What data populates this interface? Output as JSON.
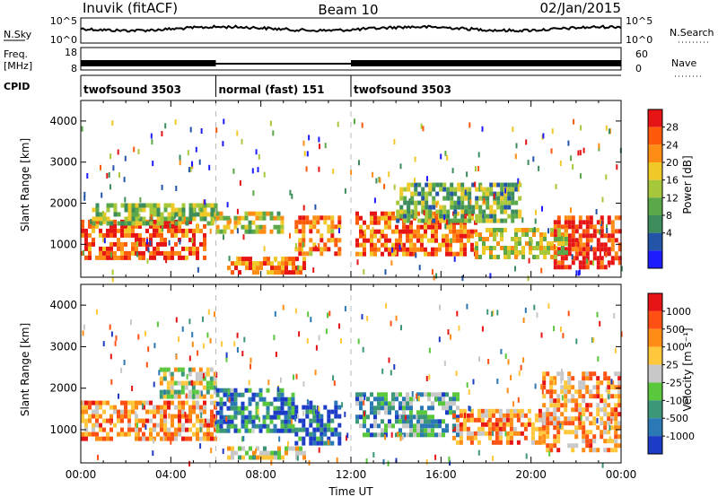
{
  "header": {
    "station": "Inuvik (fitACF)",
    "beam": "Beam 10",
    "date": "02/Jan/2015"
  },
  "strip_panels": {
    "nsky_label": "N.Sky",
    "nsky_ticks": [
      "10^5",
      "10^0"
    ],
    "nsearch_label": "N.Search",
    "nsearch_ticks": [
      "10^5",
      "10^0"
    ],
    "freq_label": "Freq.",
    "freq_unit": "[MHz]",
    "freq_ticks": [
      "18",
      "8"
    ],
    "nave_label": "Nave",
    "nave_ticks": [
      "60",
      "0"
    ],
    "cpid_label": "CPID",
    "cpid_segments": [
      {
        "label": "twofsound 3503",
        "start_h": 0,
        "end_h": 6
      },
      {
        "label": "normal (fast) 151",
        "start_h": 6,
        "end_h": 12
      },
      {
        "label": "twofsound 3503",
        "start_h": 12,
        "end_h": 24
      }
    ]
  },
  "chart_data": [
    {
      "type": "heatmap",
      "title": "",
      "ylabel": "Slant Range [km]",
      "xlim_hours": [
        0,
        24
      ],
      "ylim": [
        200,
        4500
      ],
      "yticks": [
        "1000",
        "2000",
        "3000",
        "4000"
      ],
      "colorbar_label": "Power [dB]",
      "colorbar_ticks": [
        "4",
        "8",
        "12",
        "16",
        "20",
        "24",
        "28"
      ],
      "colorbar_colors": [
        "#1c1cff",
        "#2255a8",
        "#3c8c5c",
        "#5aa84a",
        "#a8c83c",
        "#f0c828",
        "#ff8c14",
        "#ff5a0a",
        "#e61414"
      ],
      "regions": [
        {
          "t0": 0.0,
          "t1": 5.5,
          "r0": 700,
          "r1": 1600,
          "level": 0.85
        },
        {
          "t0": 0.5,
          "t1": 6.0,
          "r0": 1500,
          "r1": 2000,
          "level": 0.45
        },
        {
          "t0": 6.0,
          "t1": 9.0,
          "r0": 1300,
          "r1": 1800,
          "level": 0.55
        },
        {
          "t0": 6.5,
          "t1": 10.0,
          "r0": 300,
          "r1": 700,
          "level": 0.8
        },
        {
          "t0": 9.5,
          "t1": 11.5,
          "r0": 800,
          "r1": 1700,
          "level": 0.75
        },
        {
          "t0": 12.2,
          "t1": 17.5,
          "r0": 800,
          "r1": 1800,
          "level": 0.8
        },
        {
          "t0": 14.0,
          "t1": 19.5,
          "r0": 1600,
          "r1": 2500,
          "level": 0.4
        },
        {
          "t0": 21.0,
          "t1": 24.0,
          "r0": 400,
          "r1": 1700,
          "level": 0.95
        },
        {
          "t0": 17.5,
          "t1": 21.5,
          "r0": 700,
          "r1": 1400,
          "level": 0.55
        }
      ]
    },
    {
      "type": "heatmap",
      "title": "",
      "ylabel": "Slant Range [km]",
      "xlabel": "Time UT",
      "xlim_hours": [
        0,
        24
      ],
      "ylim": [
        200,
        4500
      ],
      "yticks": [
        "1000",
        "2000",
        "3000",
        "4000"
      ],
      "xticks": [
        "00:00",
        "04:00",
        "08:00",
        "12:00",
        "16:00",
        "20:00",
        "00:00"
      ],
      "colorbar_label": "Velocity [m s⁻¹]",
      "colorbar_ticks": [
        "1000",
        "500",
        "100",
        "25",
        "-25",
        "-100",
        "-500",
        "-1000"
      ],
      "colorbar_colors": [
        "#1c3cc8",
        "#2a78b4",
        "#3c9678",
        "#5ac83c",
        "#c8c8c8",
        "#ffc83c",
        "#ff8c14",
        "#ff5014",
        "#e61414"
      ],
      "regions": [
        {
          "t0": 0.0,
          "t1": 6.0,
          "r0": 800,
          "r1": 1700,
          "level": 0.72
        },
        {
          "t0": 3.5,
          "t1": 6.0,
          "r0": 1800,
          "r1": 2500,
          "level": 0.48
        },
        {
          "t0": 6.0,
          "t1": 9.5,
          "r0": 1000,
          "r1": 2000,
          "level": 0.22
        },
        {
          "t0": 9.5,
          "t1": 11.5,
          "r0": 700,
          "r1": 1700,
          "level": 0.12
        },
        {
          "t0": 12.2,
          "t1": 17.0,
          "r0": 900,
          "r1": 1900,
          "level": 0.3
        },
        {
          "t0": 16.5,
          "t1": 20.5,
          "r0": 700,
          "r1": 1500,
          "level": 0.72
        },
        {
          "t0": 20.5,
          "t1": 24.0,
          "r0": 500,
          "r1": 2400,
          "level": 0.7
        },
        {
          "t0": 6.5,
          "t1": 10.0,
          "r0": 300,
          "r1": 600,
          "level": 0.5
        }
      ]
    }
  ]
}
